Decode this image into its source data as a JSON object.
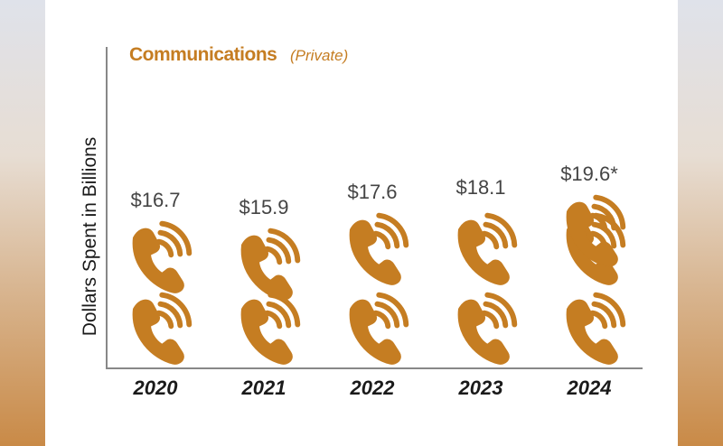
{
  "chart_data": {
    "type": "bar",
    "title": "Communications",
    "subtitle": "(Private)",
    "ylabel": "Dollars Spent in Billions",
    "xlabel": "",
    "categories": [
      "2020",
      "2021",
      "2022",
      "2023",
      "2024"
    ],
    "values": [
      16.7,
      15.9,
      17.6,
      18.1,
      19.6
    ],
    "value_labels": [
      "$16.7",
      "$15.9",
      "$17.6",
      "$18.1",
      "$19.6*"
    ],
    "icon": "telephone-icon",
    "icon_color": "#c57d22",
    "unit": "billions USD"
  }
}
